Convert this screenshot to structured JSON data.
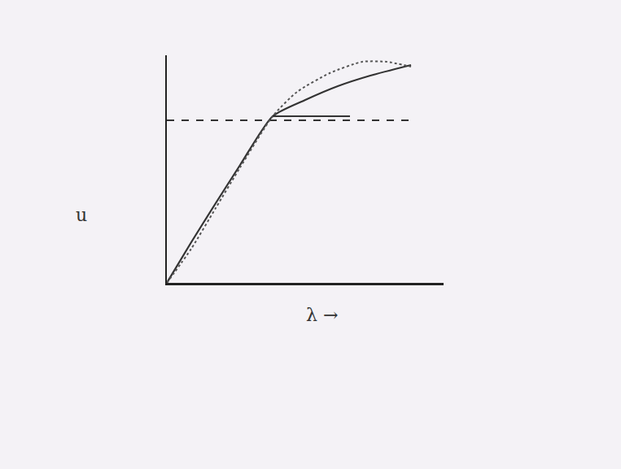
{
  "chart_data": {
    "type": "line",
    "xlabel": "λ →",
    "ylabel": "u",
    "xlim": [
      0,
      3.4
    ],
    "ylim": [
      0,
      2.8
    ],
    "xticks": [],
    "yticks": [],
    "tick_labels": false,
    "grid": false,
    "series": [
      {
        "color": "#333333",
        "line_style": "dash",
        "x": [
          0,
          3.05
        ],
        "values": [
          2.0,
          2.0
        ]
      },
      {
        "color": "#333333",
        "line_style": "solid",
        "x": [
          0,
          0.3,
          0.6,
          0.9,
          1.3,
          1.7,
          2.1,
          2.5,
          3.0
        ],
        "values": [
          0,
          0.5,
          0.98,
          1.45,
          2.05,
          2.25,
          2.42,
          2.55,
          2.68
        ]
      },
      {
        "color": "#555555",
        "line_style": "dot",
        "x": [
          0,
          0.3,
          0.6,
          0.9,
          1.3,
          1.6,
          2.0,
          2.4,
          2.7,
          3.0
        ],
        "values": [
          0,
          0.42,
          0.92,
          1.42,
          2.05,
          2.35,
          2.58,
          2.72,
          2.72,
          2.66
        ]
      },
      {
        "color": "#333333",
        "line_style": "solid",
        "x": [
          1.3,
          2.25
        ],
        "values": [
          2.05,
          2.05
        ]
      }
    ]
  }
}
